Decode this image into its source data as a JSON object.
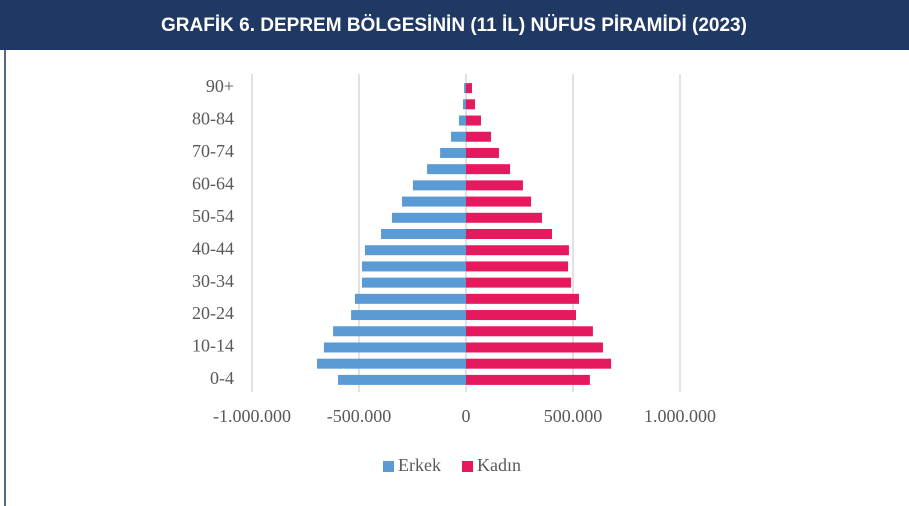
{
  "chart_data": {
    "type": "bar",
    "orientation": "horizontal",
    "title": "GRAFİK 6. DEPREM BÖLGESİNİN (11 İL) NÜFUS PİRAMİDİ (2023)",
    "categories": [
      "0-4",
      null,
      "10-14",
      null,
      "20-24",
      null,
      "30-34",
      null,
      "40-44",
      null,
      "50-54",
      null,
      "60-64",
      null,
      "70-74",
      null,
      "80-84",
      null,
      "90+"
    ],
    "series": [
      {
        "name": "Erkek",
        "color": "#5b9bd5",
        "values": [
          -598000,
          -696000,
          -664000,
          -621000,
          -537000,
          -519000,
          -486000,
          -486000,
          -472000,
          -397000,
          -346000,
          -299000,
          -248000,
          -182000,
          -121000,
          -70000,
          -33000,
          -14000,
          -9000
        ]
      },
      {
        "name": "Kadın",
        "color": "#e6195f",
        "values": [
          579000,
          678000,
          640000,
          593000,
          514000,
          528000,
          491000,
          477000,
          481000,
          402000,
          355000,
          304000,
          266000,
          206000,
          154000,
          117000,
          70000,
          42000,
          28000
        ]
      }
    ],
    "xlim": [
      -1000000,
      1000000
    ],
    "xticks": [
      {
        "value": -1000000,
        "label": "-1.000.000"
      },
      {
        "value": -500000,
        "label": "-500.000"
      },
      0,
      {
        "value": 500000,
        "label": "500.000"
      },
      {
        "value": 1000000,
        "label": "1.000.000"
      }
    ],
    "grid": true,
    "legend": "bottom"
  }
}
